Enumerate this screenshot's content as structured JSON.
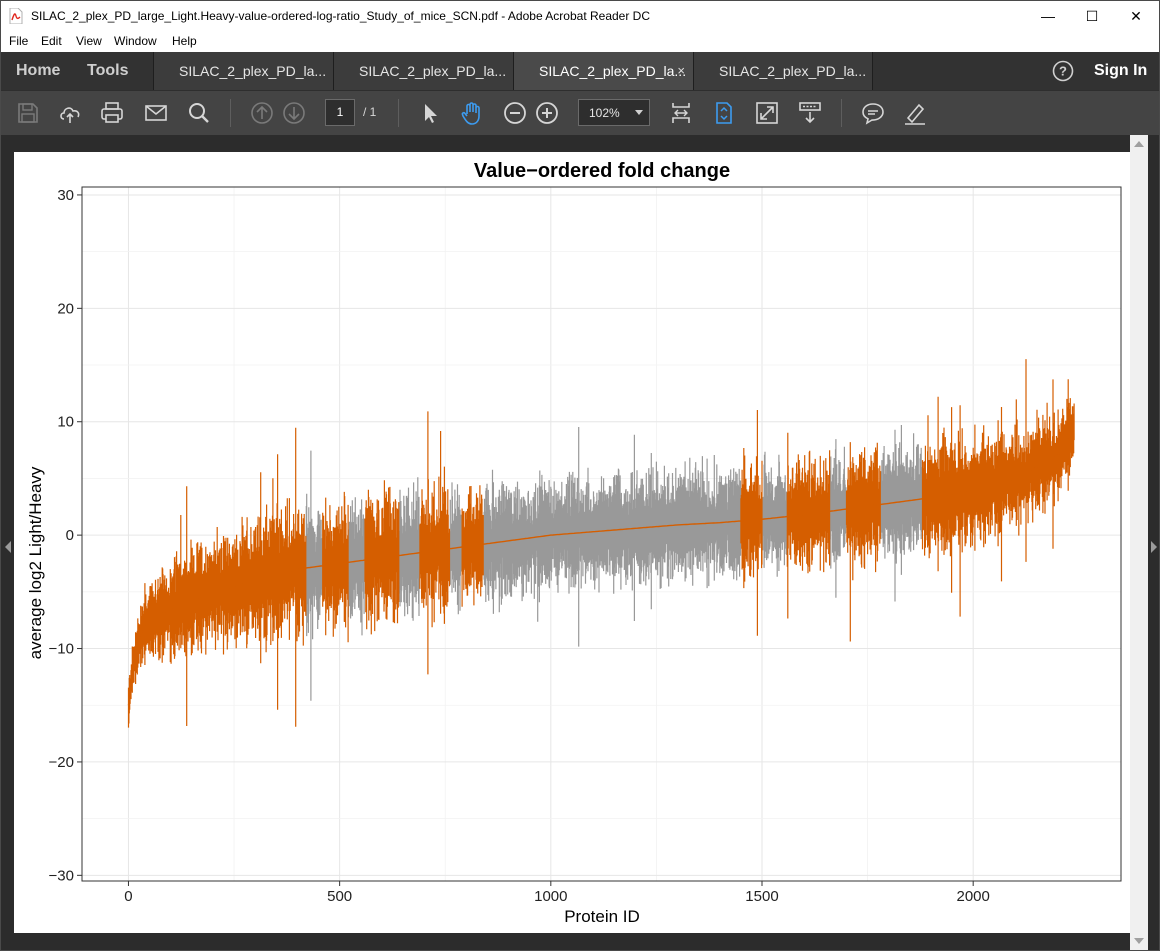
{
  "window": {
    "title": "SILAC_2_plex_PD_large_Light.Heavy-value-ordered-log-ratio_Study_of_mice_SCN.pdf - Adobe Acrobat Reader DC",
    "minimize_glyph": "—",
    "maximize_glyph": "☐",
    "close_glyph": "✕"
  },
  "menu": {
    "items": [
      "File",
      "Edit",
      "View",
      "Window",
      "Help"
    ]
  },
  "nav": {
    "home": "Home",
    "tools": "Tools",
    "help_glyph": "?",
    "signin": "Sign In"
  },
  "tabs": [
    {
      "label": "SILAC_2_plex_PD_la...",
      "active": false
    },
    {
      "label": "SILAC_2_plex_PD_la...",
      "active": false
    },
    {
      "label": "SILAC_2_plex_PD_la...",
      "active": true,
      "close": "×"
    },
    {
      "label": "SILAC_2_plex_PD_la...",
      "active": false
    }
  ],
  "toolbar": {
    "icons": [
      "save-icon",
      "upload-cloud-icon",
      "print-icon",
      "mail-icon",
      "search-icon",
      "page-up-icon",
      "page-down-icon",
      "select-arrow-icon",
      "hand-icon",
      "zoom-out-icon",
      "zoom-in-icon",
      "fit-width-icon",
      "page-fit-icon",
      "full-screen-icon",
      "scroll-mode-icon",
      "comment-icon",
      "highlight-pen-icon"
    ],
    "current_page": "1",
    "page_total": "/ 1",
    "zoom": "102%",
    "active_color": "#3d9cf0"
  },
  "chart_data": {
    "type": "line",
    "title": "Value−ordered fold change",
    "xlabel": "Protein ID",
    "ylabel": "average log2 Light/Heavy",
    "xlim": [
      -110,
      2350
    ],
    "ylim": [
      -30.5,
      30.7
    ],
    "xticks": [
      0,
      500,
      1000,
      1500,
      2000
    ],
    "yticks": [
      -30,
      -20,
      -10,
      0,
      10,
      20,
      30
    ],
    "xtick_labels": [
      "0",
      "500",
      "1000",
      "1500",
      "2000"
    ],
    "ytick_labels": [
      "−30",
      "−20",
      "−10",
      "0",
      "10",
      "20",
      "30"
    ],
    "grid": true,
    "n_points": 2240,
    "colors": {
      "significant": "#d55e00",
      "nonsignificant": "#999999"
    },
    "series": [
      {
        "role": "mean_log2_ratio_ordered",
        "x": [
          0,
          10,
          25,
          50,
          100,
          200,
          300,
          400,
          500,
          600,
          700,
          800,
          900,
          1000,
          1100,
          1200,
          1300,
          1400,
          1500,
          1600,
          1700,
          1800,
          1900,
          2000,
          2100,
          2200,
          2240
        ],
        "values": [
          -15,
          -12,
          -9,
          -7.5,
          -6.5,
          -5,
          -4,
          -3,
          -2.5,
          -2,
          -1.5,
          -1,
          -0.5,
          0,
          0.3,
          0.6,
          0.9,
          1.1,
          1.4,
          1.8,
          2.3,
          2.8,
          3.3,
          4,
          5,
          7,
          9.5
        ]
      },
      {
        "role": "error_bar_half_width",
        "x": [
          0,
          50,
          100,
          200,
          400,
          700,
          1000,
          1400,
          1800,
          2000,
          2150,
          2240
        ],
        "values": [
          1.5,
          2.5,
          3,
          3.5,
          4,
          4,
          3.5,
          3.5,
          3.5,
          3.5,
          3,
          2
        ]
      },
      {
        "role": "significant_ranges",
        "ranges": [
          [
            0,
            420
          ],
          [
            460,
            520
          ],
          [
            560,
            640
          ],
          [
            690,
            760
          ],
          [
            790,
            840
          ],
          [
            1450,
            1500
          ],
          [
            1560,
            1660
          ],
          [
            1700,
            1780
          ],
          [
            1880,
            2240
          ]
        ]
      }
    ]
  }
}
